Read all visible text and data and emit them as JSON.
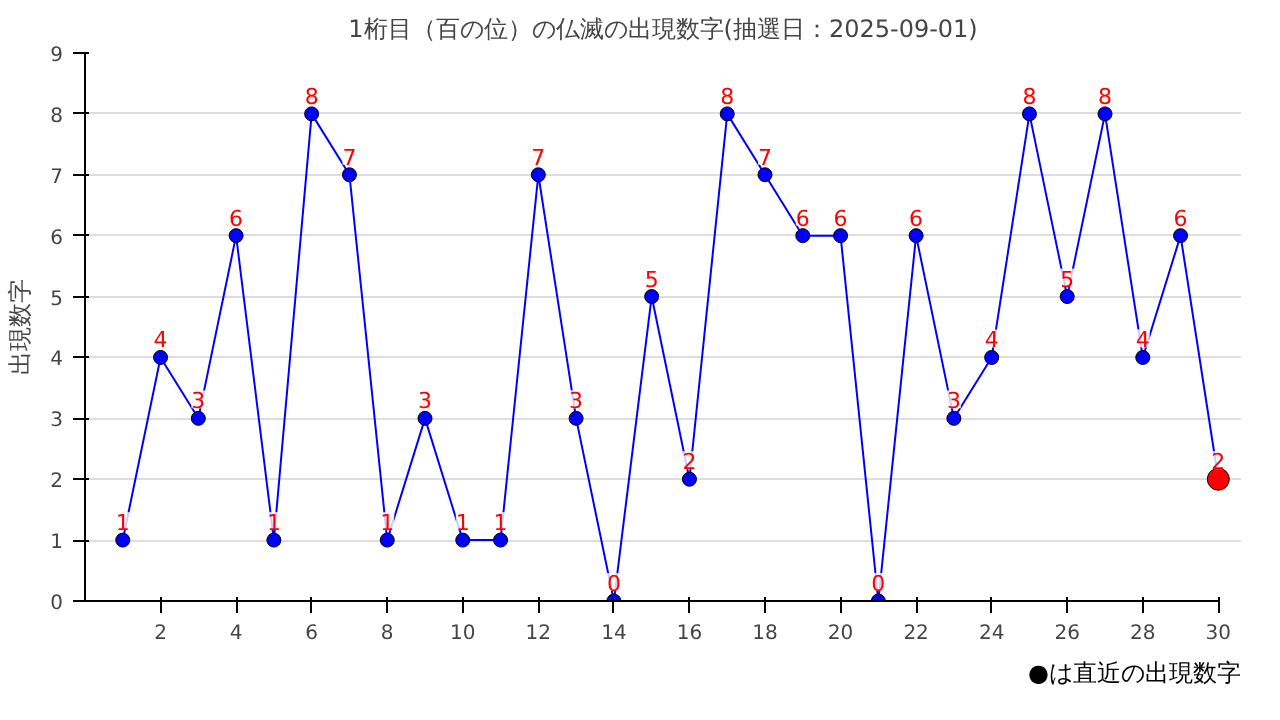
{
  "chart_data": {
    "type": "line",
    "title": "1桁目（百の位）の仏滅の出現数字(抽選日：2025-09-01)",
    "ylabel": "出現数字",
    "x": [
      1,
      2,
      3,
      4,
      5,
      6,
      7,
      8,
      9,
      10,
      11,
      12,
      13,
      14,
      15,
      16,
      17,
      18,
      19,
      20,
      21,
      22,
      23,
      24,
      25,
      26,
      27,
      28,
      29,
      30
    ],
    "series": [
      {
        "color": "#0000ff",
        "values": [
          1,
          4,
          3,
          6,
          1,
          8,
          7,
          1,
          3,
          1,
          1,
          7,
          3,
          0,
          5,
          2,
          8,
          7,
          6,
          6,
          0,
          6,
          3,
          4,
          8,
          5,
          8,
          4,
          6,
          2
        ],
        "colors": [
          "#0000ff",
          "#0000ff",
          "#0000ff",
          "#0000ff",
          "#0000ff",
          "#0000ff",
          "#0000ff",
          "#0000ff",
          "#0000ff",
          "#0000ff",
          "#0000ff",
          "#0000ff",
          "#0000ff",
          "#0000ff",
          "#0000ff",
          "#0000ff",
          "#0000ff",
          "#0000ff",
          "#0000ff",
          "#0000ff",
          "#0000ff",
          "#0000ff",
          "#0000ff",
          "#0000ff",
          "#0000ff",
          "#0000ff",
          "#0000ff",
          "#0000ff",
          "#0000ff",
          "#ff0000"
        ]
      }
    ],
    "xlim": [
      0,
      30
    ],
    "xticks": [
      2,
      4,
      6,
      8,
      10,
      12,
      14,
      16,
      18,
      20,
      22,
      24,
      26,
      28,
      30
    ],
    "ylim": [
      0,
      9
    ],
    "yticks": [
      0,
      1,
      2,
      3,
      4,
      5,
      6,
      7,
      8,
      9
    ],
    "grid": "y",
    "marker": "circle",
    "line_style": "solid",
    "data_labels": true,
    "annotations": [
      "●は直近の出現数字"
    ]
  }
}
